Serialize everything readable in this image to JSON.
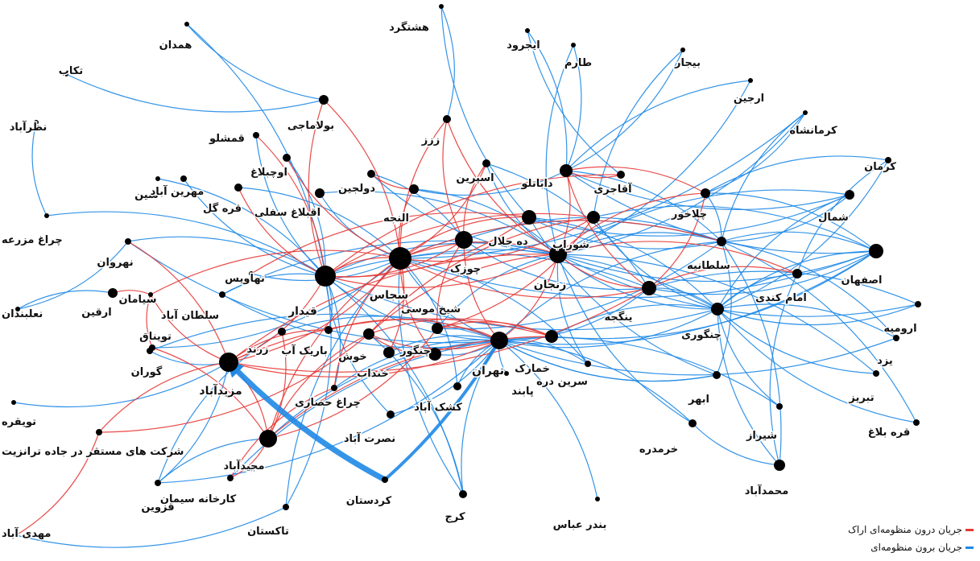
{
  "diagram": {
    "colors": {
      "inner_flow": "#e53935",
      "outer_flow": "#1e88e5",
      "node": "#000000"
    },
    "legend": [
      {
        "text": "جریان درون منظومه‌ای اراک",
        "color": "#e53935"
      },
      {
        "text": "جریان برون منظومه‌ای",
        "color": "#1e88e5"
      }
    ],
    "nodes": [
      {
        "id": "hashtgerd",
        "label": "هشتگرد"
      },
      {
        "id": "hamedan",
        "label": "همدان"
      },
      {
        "id": "tekab",
        "label": "تکاب"
      },
      {
        "id": "ijrood",
        "label": "ایجرود"
      },
      {
        "id": "tarom",
        "label": "طارم"
      },
      {
        "id": "bijar",
        "label": "بیجار"
      },
      {
        "id": "arjin",
        "label": "ارجین"
      },
      {
        "id": "kermanshah",
        "label": "کرمانشاه"
      },
      {
        "id": "nazarabad",
        "label": "نظرآباد"
      },
      {
        "id": "boolamaji",
        "label": "بولاماجی"
      },
      {
        "id": "zarz",
        "label": "ززز"
      },
      {
        "id": "qameshlu",
        "label": "قمشلو"
      },
      {
        "id": "ouchbolagh",
        "label": "اوچبلاغ"
      },
      {
        "id": "shin",
        "label": "شین"
      },
      {
        "id": "mehrinabad",
        "label": "مهرین آباد"
      },
      {
        "id": "qaragol",
        "label": "قره گل"
      },
      {
        "id": "aqbolagh_sofla",
        "label": "اقبلاغ سفلی"
      },
      {
        "id": "doljin",
        "label": "دولجین"
      },
      {
        "id": "aljeh",
        "label": "النجه"
      },
      {
        "id": "esparin",
        "label": "اسپرین"
      },
      {
        "id": "dabanloo",
        "label": "داباتلو"
      },
      {
        "id": "aqajari",
        "label": "آقاجری"
      },
      {
        "id": "kerman",
        "label": "کرمان"
      },
      {
        "id": "shomal",
        "label": "شمال"
      },
      {
        "id": "chalkhor",
        "label": "چلاخور"
      },
      {
        "id": "cheragh_mazraeh",
        "label": "چراغ مزرعه"
      },
      {
        "id": "dehjalal",
        "label": "ده جلال"
      },
      {
        "id": "shorab",
        "label": "شوراب"
      },
      {
        "id": "chuzak",
        "label": "چوزک"
      },
      {
        "id": "sojas",
        "label": "سجاس"
      },
      {
        "id": "qeydar",
        "label": "قیدار"
      },
      {
        "id": "nahavis",
        "label": "نهاویس"
      },
      {
        "id": "nahravan",
        "label": "نهروان"
      },
      {
        "id": "soltaniyeh",
        "label": "سلطانیه"
      },
      {
        "id": "isfahan",
        "label": "اصفهان"
      },
      {
        "id": "zanjan",
        "label": "زنجان"
      },
      {
        "id": "yengejeh",
        "label": "ینگجه"
      },
      {
        "id": "emam_kandi",
        "label": "امام کندی"
      },
      {
        "id": "sieman",
        "label": "سیامان"
      },
      {
        "id": "arqin",
        "label": "ارقین"
      },
      {
        "id": "naalbandan",
        "label": "نعلبندان"
      },
      {
        "id": "soltanabad",
        "label": "سلطان آباد"
      },
      {
        "id": "sheikh_mousa",
        "label": "شیخ موسی"
      },
      {
        "id": "orumiyeh",
        "label": "ارومیه"
      },
      {
        "id": "changuri",
        "label": "چنگوری"
      },
      {
        "id": "toyneq",
        "label": "تویناق"
      },
      {
        "id": "zarand",
        "label": "زرند"
      },
      {
        "id": "barik_ab",
        "label": "باریک آب"
      },
      {
        "id": "khosh",
        "label": "خوش"
      },
      {
        "id": "changur",
        "label": "چنگور"
      },
      {
        "id": "khonjab",
        "label": "خنداب"
      },
      {
        "id": "tehran",
        "label": "تهران"
      },
      {
        "id": "khomarak",
        "label": "خمارک"
      },
      {
        "id": "yazd",
        "label": "یزد"
      },
      {
        "id": "gooran",
        "label": "گوران"
      },
      {
        "id": "mazidabad",
        "label": "مزیدآباد"
      },
      {
        "id": "sarin_dareh",
        "label": "سرین دره"
      },
      {
        "id": "tabriz",
        "label": "تبریز"
      },
      {
        "id": "abhar",
        "label": "ابهر"
      },
      {
        "id": "pabend",
        "label": "پابند"
      },
      {
        "id": "keshkabad",
        "label": "کشک آباد"
      },
      {
        "id": "cheragh_hesari",
        "label": "چراغ حصاری"
      },
      {
        "id": "toyqareh",
        "label": "تویقره"
      },
      {
        "id": "shiraz",
        "label": "شیراز"
      },
      {
        "id": "nosratabad",
        "label": "نصرت آباد"
      },
      {
        "id": "gharebolagh",
        "label": "قره بلاغ"
      },
      {
        "id": "khorramdareh",
        "label": "خرمدره"
      },
      {
        "id": "sherkat",
        "label": "شرکت های مستقر در جاده ترانزیت"
      },
      {
        "id": "majidabad",
        "label": "مجیدآباد"
      },
      {
        "id": "mohammadabad",
        "label": "محمدآباد"
      },
      {
        "id": "qazvin",
        "label": "قزوین"
      },
      {
        "id": "karkhaneh_siman",
        "label": "کارخانه سیمان"
      },
      {
        "id": "kordestan",
        "label": "کردستان"
      },
      {
        "id": "takestan",
        "label": "تاکستان"
      },
      {
        "id": "karaj",
        "label": "کرج"
      },
      {
        "id": "bandar_abbas",
        "label": "بندر عباس"
      },
      {
        "id": "mahdiabad",
        "label": "مهدی آباد"
      }
    ],
    "edges_in": [
      [
        "sojas",
        "boolamaji"
      ],
      [
        "sojas",
        "aljeh"
      ],
      [
        "sojas",
        "qeydar"
      ],
      [
        "sojas",
        "dehjalal"
      ],
      [
        "sojas",
        "shorab"
      ],
      [
        "sojas",
        "zanjan"
      ],
      [
        "sojas",
        "yengejeh"
      ],
      [
        "sojas",
        "mazidabad"
      ],
      [
        "sojas",
        "majidabad"
      ],
      [
        "sojas",
        "khonjab"
      ],
      [
        "sojas",
        "changur"
      ],
      [
        "sojas",
        "soltaniyeh"
      ],
      [
        "sojas",
        "sieman"
      ],
      [
        "sojas",
        "ouchbolagh"
      ],
      [
        "sojas",
        "cheragh_hesari"
      ],
      [
        "sojas",
        "zarz"
      ],
      [
        "sojas",
        "esparin"
      ],
      [
        "qeydar",
        "boolamaji"
      ],
      [
        "qeydar",
        "dehjalal"
      ],
      [
        "qeydar",
        "shorab"
      ],
      [
        "qeydar",
        "zanjan"
      ],
      [
        "qeydar",
        "mazidabad"
      ],
      [
        "qeydar",
        "qameshlu"
      ],
      [
        "qeydar",
        "qaragol"
      ],
      [
        "qeydar",
        "chuzak"
      ],
      [
        "qeydar",
        "aqajari"
      ],
      [
        "mazidabad",
        "sherkat"
      ],
      [
        "mazidabad",
        "majidabad"
      ],
      [
        "mazidabad",
        "nahravan"
      ],
      [
        "mazidabad",
        "sieman"
      ],
      [
        "mazidabad",
        "tehran"
      ],
      [
        "mazidabad",
        "zanjan"
      ],
      [
        "mazidabad",
        "yengejeh"
      ],
      [
        "mazidabad",
        "khomarak"
      ],
      [
        "tehran",
        "zanjan"
      ],
      [
        "tehran",
        "chuzak"
      ],
      [
        "tehran",
        "sheikh_mousa"
      ],
      [
        "tehran",
        "khosh"
      ],
      [
        "zanjan",
        "dabanloo"
      ],
      [
        "zanjan",
        "chalkhor"
      ],
      [
        "zanjan",
        "yengejeh"
      ],
      [
        "zanjan",
        "emam_kandi"
      ],
      [
        "zanjan",
        "khosh"
      ],
      [
        "zanjan",
        "zarz"
      ],
      [
        "dabanloo",
        "aqajari"
      ],
      [
        "dabanloo",
        "chalkhor"
      ],
      [
        "dabanloo",
        "yengejeh"
      ],
      [
        "majidabad",
        "karkhaneh_siman"
      ],
      [
        "majidabad",
        "zarand"
      ],
      [
        "majidabad",
        "khosh"
      ],
      [
        "majidabad",
        "sheikh_mousa"
      ],
      [
        "majidabad",
        "khomarak"
      ],
      [
        "majidabad",
        "toyneq"
      ],
      [
        "sherkat",
        "mahdiabad"
      ],
      [
        "sherkat",
        "khosh"
      ],
      [
        "yengejeh",
        "emam_kandi"
      ],
      [
        "yengejeh",
        "chalkhor"
      ],
      [
        "shorab",
        "sheikh_mousa"
      ],
      [
        "shorab",
        "khosh"
      ],
      [
        "chuzak",
        "esparin"
      ],
      [
        "chuzak",
        "sheikh_mousa"
      ],
      [
        "chuzak",
        "zarz"
      ],
      [
        "barik_ab",
        "mazidabad"
      ],
      [
        "barik_ab",
        "tehran"
      ],
      [
        "sieman",
        "toyneq"
      ],
      [
        "arqin",
        "sieman"
      ],
      [
        "doljin",
        "aljeh"
      ],
      [
        "sheikh_mousa",
        "khomarak"
      ],
      [
        "khosh",
        "changur"
      ],
      [
        "khosh",
        "khomarak"
      ],
      [
        "cheragh_hesari",
        "karkhaneh_siman"
      ],
      [
        "nahavis",
        "dehjalal"
      ]
    ],
    "edges_out": [
      [
        "hamedan",
        "boolamaji"
      ],
      [
        "hamedan",
        "qeydar"
      ],
      [
        "tekab",
        "boolamaji"
      ],
      [
        "hashtgerd",
        "zarz"
      ],
      [
        "hashtgerd",
        "dehjalal"
      ],
      [
        "ijrood",
        "dabanloo"
      ],
      [
        "ijrood",
        "aqajari"
      ],
      [
        "tarom",
        "dabanloo"
      ],
      [
        "tarom",
        "zanjan"
      ],
      [
        "bijar",
        "dabanloo"
      ],
      [
        "bijar",
        "shorab"
      ],
      [
        "arjin",
        "zanjan"
      ],
      [
        "arjin",
        "dabanloo"
      ],
      [
        "kermanshah",
        "chalkhor"
      ],
      [
        "kermanshah",
        "soltaniyeh"
      ],
      [
        "kermanshah",
        "zanjan"
      ],
      [
        "nazarabad",
        "cheragh_mazraeh"
      ],
      [
        "cheragh_mazraeh",
        "qeydar"
      ],
      [
        "kerman",
        "chalkhor"
      ],
      [
        "kerman",
        "changuri"
      ],
      [
        "kerman",
        "emam_kandi"
      ],
      [
        "shomal",
        "dehjalal"
      ],
      [
        "shomal",
        "zanjan"
      ],
      [
        "shomal",
        "soltaniyeh"
      ],
      [
        "shomal",
        "changuri"
      ],
      [
        "isfahan",
        "tehran"
      ],
      [
        "isfahan",
        "soltaniyeh"
      ],
      [
        "isfahan",
        "dabanloo"
      ],
      [
        "isfahan",
        "changuri"
      ],
      [
        "isfahan",
        "zanjan"
      ],
      [
        "isfahan",
        "chalkhor"
      ],
      [
        "orumiyeh",
        "changuri"
      ],
      [
        "orumiyeh",
        "yengejeh"
      ],
      [
        "orumiyeh",
        "zanjan"
      ],
      [
        "yazd",
        "changuri"
      ],
      [
        "yazd",
        "tehran"
      ],
      [
        "yazd",
        "soltaniyeh"
      ],
      [
        "tabriz",
        "changuri"
      ],
      [
        "tabriz",
        "zanjan"
      ],
      [
        "gharebolagh",
        "changuri"
      ],
      [
        "gharebolagh",
        "soltaniyeh"
      ],
      [
        "shiraz",
        "changuri"
      ],
      [
        "shiraz",
        "tehran"
      ],
      [
        "abhar",
        "tehran"
      ],
      [
        "abhar",
        "soltaniyeh"
      ],
      [
        "abhar",
        "dehjalal"
      ],
      [
        "khorramdareh",
        "tehran"
      ],
      [
        "khorramdareh",
        "zanjan"
      ],
      [
        "khorramdareh",
        "mohammadabad"
      ],
      [
        "mohammadabad",
        "changuri"
      ],
      [
        "mohammadabad",
        "soltaniyeh"
      ],
      [
        "mohammadabad",
        "emam_kandi"
      ],
      [
        "bandar_abbas",
        "tehran"
      ],
      [
        "karaj",
        "tehran"
      ],
      [
        "karaj",
        "qeydar"
      ],
      [
        "karaj",
        "sojas"
      ],
      [
        "karaj",
        "khosh"
      ],
      [
        "takestan",
        "mahdiabad"
      ],
      [
        "takestan",
        "qeydar"
      ],
      [
        "takestan",
        "sojas"
      ],
      [
        "qazvin",
        "tehran"
      ],
      [
        "qazvin",
        "zarand"
      ],
      [
        "naalbandan",
        "nahravan"
      ],
      [
        "naalbandan",
        "arqin"
      ],
      [
        "gooran",
        "mazidabad"
      ],
      [
        "gooran",
        "tehran"
      ],
      [
        "toyqareh",
        "mazidabad"
      ],
      [
        "nosratabad",
        "qeydar"
      ],
      [
        "nosratabad",
        "tehran"
      ],
      [
        "keshkabad",
        "tehran"
      ],
      [
        "keshkabad",
        "sojas"
      ],
      [
        "pabend",
        "tehran"
      ],
      [
        "sarin_dareh",
        "tehran"
      ],
      [
        "sarin_dareh",
        "zanjan"
      ],
      [
        "sarin_dareh",
        "sojas"
      ],
      [
        "cheragh_hesari",
        "tehran"
      ],
      [
        "cheragh_hesari",
        "qeydar"
      ],
      [
        "shin",
        "qeydar"
      ],
      [
        "mehrinabad",
        "qeydar"
      ],
      [
        "qaragol",
        "sojas"
      ],
      [
        "aqbolagh_sofla",
        "sojas"
      ],
      [
        "aqbolagh_sofla",
        "zanjan"
      ],
      [
        "nahavis",
        "sojas"
      ],
      [
        "nahravan",
        "qeydar"
      ],
      [
        "nahravan",
        "tehran"
      ],
      [
        "soltanabad",
        "qeydar"
      ],
      [
        "soltanabad",
        "tehran"
      ],
      [
        "soltanabad",
        "zanjan"
      ],
      [
        "toyneq",
        "sojas"
      ],
      [
        "zarand",
        "tehran"
      ],
      [
        "barik_ab",
        "qeydar"
      ],
      [
        "khonjab",
        "tehran"
      ],
      [
        "changur",
        "tehran"
      ],
      [
        "sheikh_mousa",
        "zanjan"
      ],
      [
        "sheikh_mousa",
        "soltaniyeh"
      ],
      [
        "khomarak",
        "changuri"
      ],
      [
        "khomarak",
        "isfahan"
      ],
      [
        "yengejeh",
        "changuri"
      ],
      [
        "yengejeh",
        "isfahan"
      ],
      [
        "yengejeh",
        "tehran"
      ],
      [
        "emam_kandi",
        "changuri"
      ],
      [
        "chalkhor",
        "soltaniyeh"
      ],
      [
        "aljeh",
        "dabanloo"
      ],
      [
        "aljeh",
        "zanjan"
      ],
      [
        "esparin",
        "zanjan"
      ],
      [
        "esparin",
        "yengejeh"
      ],
      [
        "doljin",
        "zanjan"
      ],
      [
        "doljin",
        "chuzak"
      ],
      [
        "dehjalal",
        "soltaniyeh"
      ],
      [
        "dehjalal",
        "changuri"
      ],
      [
        "shorab",
        "changuri"
      ],
      [
        "shorab",
        "isfahan"
      ],
      [
        "zanjan",
        "changuri"
      ],
      [
        "zanjan",
        "soltaniyeh"
      ],
      [
        "dabanloo",
        "shomal"
      ],
      [
        "dabanloo",
        "soltaniyeh"
      ],
      [
        "chuzak",
        "yengejeh"
      ],
      [
        "chuzak",
        "soltaniyeh"
      ],
      [
        "qeydar",
        "tehran"
      ],
      [
        "qeydar",
        "yengejeh"
      ],
      [
        "qeydar",
        "changuri"
      ],
      [
        "qeydar",
        "zanjan"
      ],
      [
        "sojas",
        "tehran"
      ],
      [
        "sojas",
        "changuri"
      ],
      [
        "sojas",
        "isfahan"
      ],
      [
        "sojas",
        "soltaniyeh"
      ],
      [
        "sojas",
        "kermanshah"
      ],
      [
        "majidabad",
        "tehran"
      ],
      [
        "majidabad",
        "qazvin"
      ],
      [
        "mazidabad",
        "qazvin"
      ],
      [
        "tehran",
        "changuri"
      ],
      [
        "tehran",
        "soltaniyeh"
      ],
      [
        "tehran",
        "abhar"
      ],
      [
        "karkhaneh_siman",
        "tehran"
      ],
      [
        "qameshlu",
        "qeydar"
      ],
      [
        "ouchbolagh",
        "qeydar"
      ]
    ],
    "strong_out_edges": [
      [
        "kordestan",
        "mazidabad"
      ],
      [
        "kordestan",
        "tehran"
      ]
    ]
  }
}
